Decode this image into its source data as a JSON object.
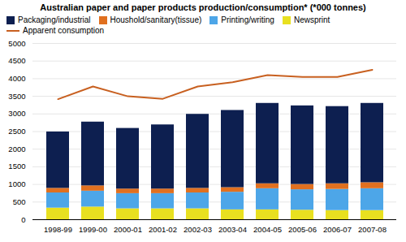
{
  "chart_data": {
    "type": "bar",
    "stacked": true,
    "title": "Australian paper and paper products production/consumption* (*000 tonnes)",
    "categories": [
      "1998-99",
      "1999-00",
      "2000-01",
      "2001-02",
      "2002-03",
      "2003-04",
      "2004-05",
      "2005-06",
      "2006-07",
      "2007-08"
    ],
    "series": [
      {
        "name": "Newsprint",
        "type": "bar",
        "color": "#e8e020",
        "values": [
          330,
          360,
          310,
          310,
          310,
          280,
          280,
          270,
          260,
          260
        ]
      },
      {
        "name": "Printing/writing",
        "type": "bar",
        "color": "#4da6e8",
        "values": [
          430,
          450,
          430,
          430,
          450,
          500,
          600,
          580,
          600,
          620
        ]
      },
      {
        "name": "Houshold/sanitary(tissue)",
        "type": "bar",
        "color": "#e07020",
        "values": [
          130,
          150,
          130,
          130,
          130,
          130,
          140,
          150,
          160,
          170
        ]
      },
      {
        "name": "Packaging/industrial",
        "type": "bar",
        "color": "#0d1f50",
        "values": [
          1600,
          1810,
          1720,
          1820,
          2100,
          2190,
          2280,
          2230,
          2190,
          2250
        ]
      },
      {
        "name": "Apparent consumption",
        "type": "line",
        "color": "#c86020",
        "values": [
          3420,
          3780,
          3500,
          3430,
          3780,
          3900,
          4100,
          4050,
          4050,
          4250
        ]
      }
    ],
    "ylim": [
      0,
      5000
    ],
    "yticks": [
      0,
      500,
      1000,
      1500,
      2000,
      2500,
      3000,
      3500,
      4000,
      4500,
      5000
    ],
    "grid": true,
    "legend": "upper left"
  }
}
